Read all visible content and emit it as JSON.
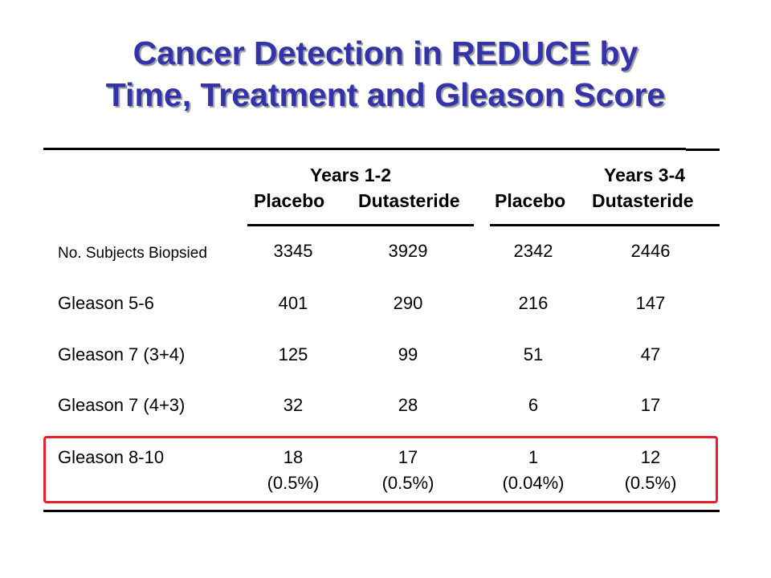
{
  "title": {
    "line1": "Cancer Detection in REDUCE by",
    "line2": "Time, Treatment and Gleason Score"
  },
  "table": {
    "groups": [
      {
        "label": "Years 1-2"
      },
      {
        "label": "Years 3-4"
      }
    ],
    "columns": [
      "Placebo",
      "Dutasteride",
      "Placebo",
      "Dutasteride"
    ],
    "rows": [
      {
        "label": "No. Subjects Biopsied",
        "values": [
          "3345",
          "3929",
          "2342",
          "2446"
        ]
      },
      {
        "label": "Gleason 5-6",
        "values": [
          "401",
          "290",
          "216",
          "147"
        ]
      },
      {
        "label": "Gleason 7 (3+4)",
        "values": [
          "125",
          "99",
          "51",
          "47"
        ]
      },
      {
        "label": "Gleason 7 (4+3)",
        "values": [
          "32",
          "28",
          "6",
          "17"
        ]
      },
      {
        "label": "Gleason 8-10",
        "values": [
          "18",
          "17",
          "1",
          "12"
        ],
        "percents": [
          "(0.5%)",
          "(0.5%)",
          "(0.04%)",
          "(0.5%)"
        ]
      }
    ]
  },
  "colors": {
    "title": "#3333aa",
    "highlight_border": "#e8202a",
    "text": "#000000"
  }
}
